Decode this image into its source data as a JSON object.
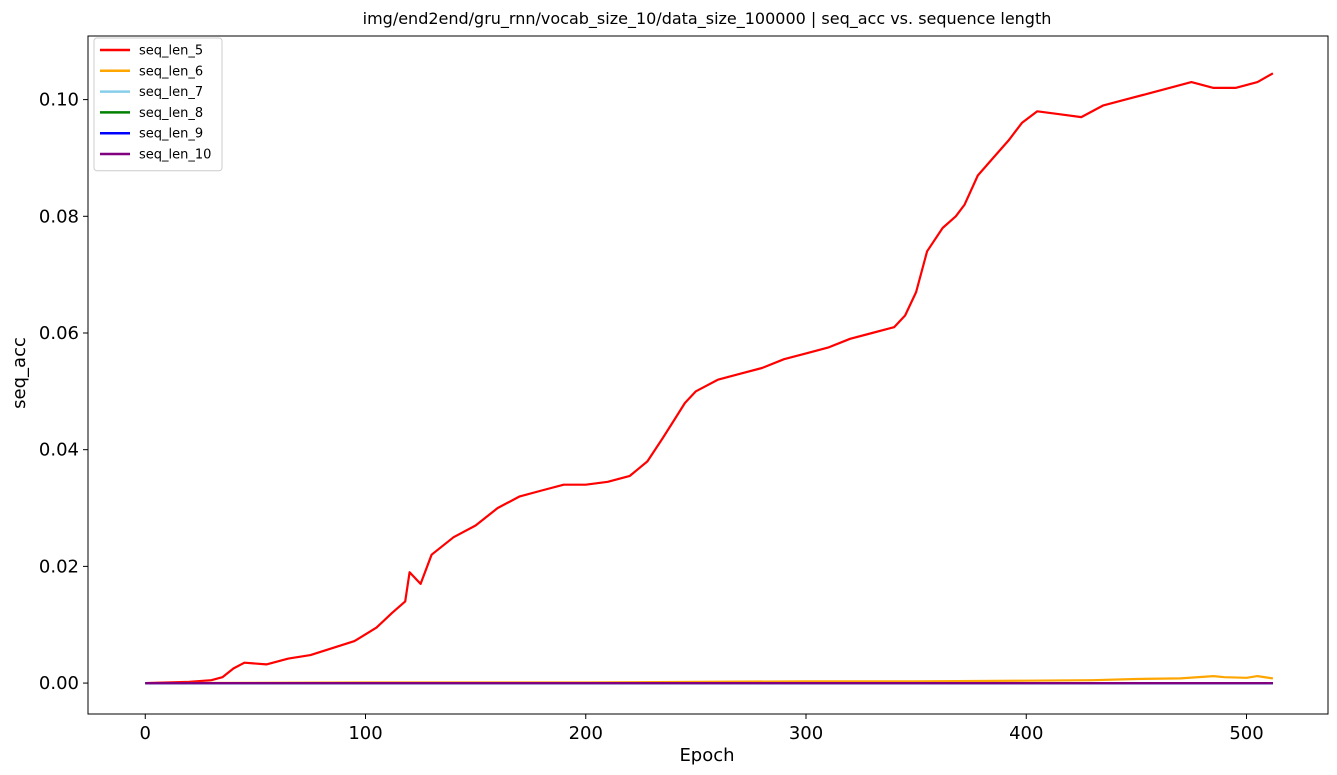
{
  "chart_data": {
    "type": "line",
    "title": "img/end2end/gru_rnn/vocab_size_10/data_size_100000 | seq_acc vs. sequence length",
    "xlabel": "Epoch",
    "ylabel": "seq_acc",
    "xlim": [
      -26,
      537
    ],
    "ylim": [
      -0.0053,
      0.1109
    ],
    "xticks": [
      0,
      100,
      200,
      300,
      400,
      500
    ],
    "xtick_labels": [
      "0",
      "100",
      "200",
      "300",
      "400",
      "500"
    ],
    "yticks": [
      0.0,
      0.02,
      0.04,
      0.06,
      0.08,
      0.1
    ],
    "ytick_labels": [
      "0.00",
      "0.02",
      "0.04",
      "0.06",
      "0.08",
      "0.10"
    ],
    "grid": false,
    "legend_position": "top-left",
    "series": [
      {
        "name": "seq_len_5",
        "color": "#ff0000",
        "points": [
          [
            0,
            0.0
          ],
          [
            20,
            0.0002
          ],
          [
            30,
            0.0005
          ],
          [
            35,
            0.001
          ],
          [
            40,
            0.0025
          ],
          [
            45,
            0.0035
          ],
          [
            55,
            0.0032
          ],
          [
            65,
            0.0042
          ],
          [
            75,
            0.0048
          ],
          [
            85,
            0.006
          ],
          [
            95,
            0.0072
          ],
          [
            105,
            0.0095
          ],
          [
            112,
            0.012
          ],
          [
            118,
            0.014
          ],
          [
            120,
            0.019
          ],
          [
            125,
            0.017
          ],
          [
            130,
            0.022
          ],
          [
            140,
            0.025
          ],
          [
            150,
            0.027
          ],
          [
            160,
            0.03
          ],
          [
            170,
            0.032
          ],
          [
            180,
            0.033
          ],
          [
            190,
            0.034
          ],
          [
            200,
            0.034
          ],
          [
            210,
            0.0345
          ],
          [
            220,
            0.0355
          ],
          [
            228,
            0.038
          ],
          [
            235,
            0.042
          ],
          [
            240,
            0.045
          ],
          [
            245,
            0.048
          ],
          [
            250,
            0.05
          ],
          [
            260,
            0.052
          ],
          [
            270,
            0.053
          ],
          [
            280,
            0.054
          ],
          [
            290,
            0.0555
          ],
          [
            300,
            0.0565
          ],
          [
            310,
            0.0575
          ],
          [
            320,
            0.059
          ],
          [
            330,
            0.06
          ],
          [
            340,
            0.061
          ],
          [
            345,
            0.063
          ],
          [
            350,
            0.067
          ],
          [
            355,
            0.074
          ],
          [
            362,
            0.078
          ],
          [
            368,
            0.08
          ],
          [
            372,
            0.082
          ],
          [
            378,
            0.087
          ],
          [
            385,
            0.09
          ],
          [
            392,
            0.093
          ],
          [
            398,
            0.096
          ],
          [
            405,
            0.098
          ],
          [
            415,
            0.0975
          ],
          [
            425,
            0.097
          ],
          [
            435,
            0.099
          ],
          [
            445,
            0.1
          ],
          [
            455,
            0.101
          ],
          [
            465,
            0.102
          ],
          [
            475,
            0.103
          ],
          [
            485,
            0.102
          ],
          [
            495,
            0.102
          ],
          [
            505,
            0.103
          ],
          [
            512,
            0.1045
          ]
        ]
      },
      {
        "name": "seq_len_6",
        "color": "#ffa500",
        "points": [
          [
            0,
            0.0
          ],
          [
            100,
            0.0001
          ],
          [
            200,
            0.0001
          ],
          [
            250,
            0.0002
          ],
          [
            300,
            0.0003
          ],
          [
            350,
            0.0003
          ],
          [
            400,
            0.0004
          ],
          [
            430,
            0.0005
          ],
          [
            450,
            0.0007
          ],
          [
            470,
            0.0008
          ],
          [
            485,
            0.0012
          ],
          [
            490,
            0.001
          ],
          [
            500,
            0.0009
          ],
          [
            505,
            0.0012
          ],
          [
            512,
            0.0008
          ]
        ]
      },
      {
        "name": "seq_len_7",
        "color": "#87ceeb",
        "points": [
          [
            0,
            0.0
          ],
          [
            512,
            0.0
          ]
        ]
      },
      {
        "name": "seq_len_8",
        "color": "#008000",
        "points": [
          [
            0,
            0.0
          ],
          [
            512,
            0.0
          ]
        ]
      },
      {
        "name": "seq_len_9",
        "color": "#0000ff",
        "points": [
          [
            0,
            0.0
          ],
          [
            512,
            0.0
          ]
        ]
      },
      {
        "name": "seq_len_10",
        "color": "#800080",
        "points": [
          [
            0,
            0.0
          ],
          [
            512,
            0.0
          ]
        ]
      }
    ]
  }
}
